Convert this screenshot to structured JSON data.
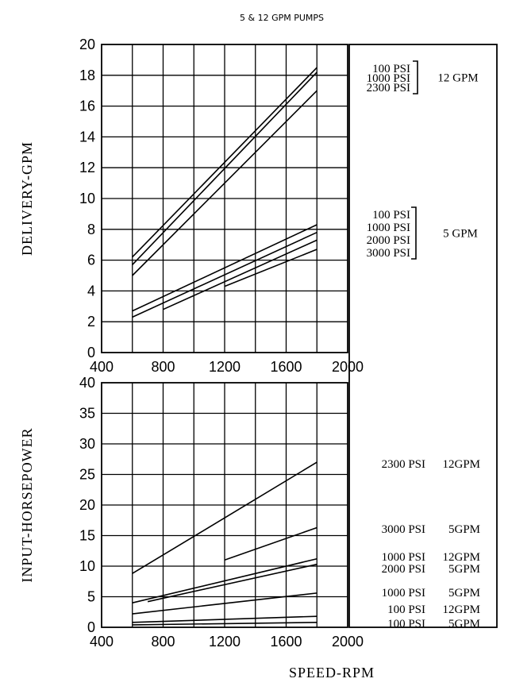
{
  "page_title": "5 & 12 GPM PUMPS",
  "chart_data": [
    {
      "type": "line",
      "ylabel": "DELIVERY-GPM",
      "xlim": [
        400,
        2000
      ],
      "ylim": [
        0,
        20
      ],
      "x_ticks": [
        "400",
        "800",
        "1200",
        "1600",
        "2000"
      ],
      "y_ticks": [
        "0",
        "2",
        "4",
        "6",
        "8",
        "10",
        "12",
        "14",
        "16",
        "18",
        "20"
      ],
      "grid": true,
      "series": [
        {
          "name": "100 PSI 12 GPM",
          "x": [
            600,
            1800
          ],
          "y": [
            6.2,
            18.5
          ]
        },
        {
          "name": "1000 PSI 12 GPM",
          "x": [
            600,
            1800
          ],
          "y": [
            5.7,
            18.2
          ]
        },
        {
          "name": "2300 PSI 12 GPM",
          "x": [
            600,
            1800
          ],
          "y": [
            5.0,
            17.0
          ]
        },
        {
          "name": "100 PSI 5 GPM",
          "x": [
            600,
            1800
          ],
          "y": [
            2.7,
            8.3
          ]
        },
        {
          "name": "1000 PSI 5 GPM",
          "x": [
            600,
            1800
          ],
          "y": [
            2.3,
            7.8
          ]
        },
        {
          "name": "2000 PSI 5 GPM",
          "x": [
            800,
            1800
          ],
          "y": [
            2.8,
            7.3
          ]
        },
        {
          "name": "3000 PSI 5 GPM",
          "x": [
            1200,
            1800
          ],
          "y": [
            4.3,
            6.7
          ]
        }
      ],
      "legend_groups": [
        {
          "label": "12 GPM",
          "items": [
            "100  PSI",
            "1000  PSI",
            "2300  PSI"
          ]
        },
        {
          "label": "5  GPM",
          "items": [
            "100  PSI",
            "1000  PSI",
            "2000  PSI",
            "3000  PSI"
          ]
        }
      ]
    },
    {
      "type": "line",
      "ylabel": "INPUT-HORSEPOWER",
      "xlabel": "SPEED-RPM",
      "xlim": [
        400,
        2000
      ],
      "ylim": [
        0,
        40
      ],
      "x_ticks": [
        "400",
        "800",
        "1200",
        "1600",
        "2000"
      ],
      "y_ticks": [
        "0",
        "5",
        "10",
        "15",
        "20",
        "25",
        "30",
        "35",
        "40"
      ],
      "grid": true,
      "series": [
        {
          "name": "2300 PSI 12GPM",
          "x": [
            600,
            1800
          ],
          "y": [
            8.8,
            27.0
          ]
        },
        {
          "name": "3000 PSI 5GPM",
          "x": [
            1200,
            1800
          ],
          "y": [
            11.0,
            16.3
          ]
        },
        {
          "name": "1000 PSI 12GPM",
          "x": [
            600,
            1800
          ],
          "y": [
            4.0,
            11.2
          ]
        },
        {
          "name": "2000 PSI 5GPM",
          "x": [
            700,
            1800
          ],
          "y": [
            4.2,
            10.3
          ]
        },
        {
          "name": "1000 PSI 5GPM",
          "x": [
            600,
            1800
          ],
          "y": [
            2.2,
            5.6
          ]
        },
        {
          "name": "100 PSI 12GPM",
          "x": [
            600,
            1800
          ],
          "y": [
            0.8,
            1.8
          ]
        },
        {
          "name": "100 PSI 5GPM",
          "x": [
            600,
            1800
          ],
          "y": [
            0.4,
            0.8
          ]
        }
      ],
      "labels": [
        {
          "psi": "2300  PSI",
          "gpm": "12GPM"
        },
        {
          "psi": "3000  PSI",
          "gpm": "5GPM"
        },
        {
          "psi": "1000  PSI",
          "gpm": "12GPM"
        },
        {
          "psi": "2000  PSI",
          "gpm": "5GPM"
        },
        {
          "psi": "1000  PSI",
          "gpm": "5GPM"
        },
        {
          "psi": "100  PSI",
          "gpm": "12GPM"
        },
        {
          "psi": "100  PSI",
          "gpm": "5GPM"
        }
      ]
    }
  ]
}
